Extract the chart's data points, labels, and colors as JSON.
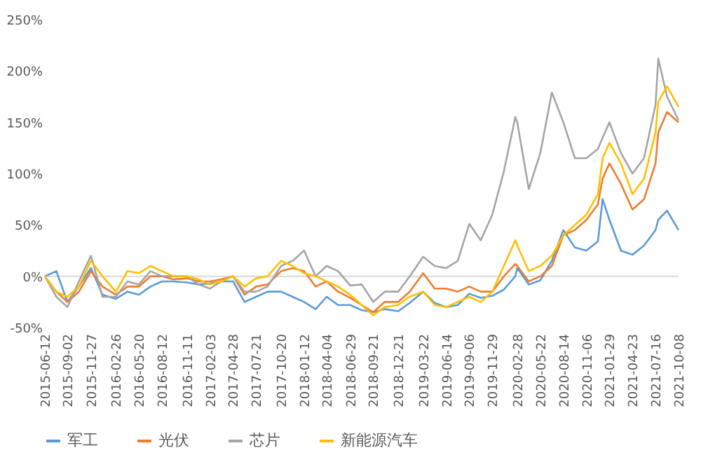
{
  "chart_data": {
    "type": "line",
    "x": [
      "2015-06-12",
      "2015-07-24",
      "2015-09-02",
      "2015-10-14",
      "2015-11-27",
      "2016-01-08",
      "2016-02-26",
      "2016-04-08",
      "2016-05-20",
      "2016-07-01",
      "2016-08-12",
      "2016-09-23",
      "2016-11-11",
      "2016-12-23",
      "2017-02-03",
      "2017-03-17",
      "2017-04-28",
      "2017-06-09",
      "2017-07-21",
      "2017-09-01",
      "2017-10-20",
      "2017-12-01",
      "2018-01-12",
      "2018-02-23",
      "2018-04-04",
      "2018-05-16",
      "2018-06-29",
      "2018-08-10",
      "2018-09-21",
      "2018-11-02",
      "2018-12-21",
      "2019-02-01",
      "2019-03-22",
      "2019-05-03",
      "2019-06-14",
      "2019-07-26",
      "2019-09-06",
      "2019-10-18",
      "2019-11-29",
      "2020-01-10",
      "2020-02-21",
      "2020-02-28",
      "2020-04-10",
      "2020-05-22",
      "2020-07-03",
      "2020-08-14",
      "2020-09-25",
      "2020-11-06",
      "2020-12-18",
      "2021-01-04",
      "2021-01-29",
      "2021-03-12",
      "2021-04-23",
      "2021-06-04",
      "2021-07-16",
      "2021-07-26",
      "2021-08-27",
      "2021-10-08"
    ],
    "series": [
      {
        "name": "军工",
        "color": "#5b9bd5",
        "values": [
          0,
          5,
          -25,
          -10,
          8,
          -18,
          -22,
          -15,
          -18,
          -10,
          -5,
          -5,
          -6,
          -8,
          -7,
          -5,
          -5,
          -25,
          -20,
          -15,
          -15,
          -20,
          -25,
          -32,
          -20,
          -28,
          -28,
          -33,
          -35,
          -32,
          -34,
          -26,
          -15,
          -26,
          -30,
          -28,
          -17,
          -21,
          -19,
          -13,
          0,
          8,
          -8,
          -4,
          15,
          45,
          28,
          25,
          34,
          75,
          55,
          25,
          21,
          30,
          45,
          55,
          64,
          45
        ]
      },
      {
        "name": "光伏",
        "color": "#ed7d31",
        "values": [
          0,
          -15,
          -25,
          -15,
          5,
          -10,
          -18,
          -10,
          -10,
          0,
          0,
          -3,
          -2,
          -5,
          -5,
          -3,
          0,
          -18,
          -10,
          -8,
          5,
          8,
          5,
          -10,
          -5,
          -15,
          -21,
          -28,
          -35,
          -25,
          -25,
          -15,
          3,
          -12,
          -12,
          -15,
          -10,
          -15,
          -15,
          0,
          12,
          10,
          -5,
          0,
          10,
          40,
          45,
          55,
          70,
          95,
          110,
          90,
          65,
          75,
          110,
          140,
          160,
          150
        ]
      },
      {
        "name": "芯片",
        "color": "#a5a5a5",
        "values": [
          0,
          -20,
          -30,
          -5,
          20,
          -20,
          -20,
          -5,
          -8,
          5,
          0,
          0,
          0,
          -8,
          -12,
          -5,
          0,
          -15,
          -15,
          -10,
          10,
          15,
          25,
          0,
          10,
          5,
          -9,
          -8,
          -25,
          -15,
          -15,
          0,
          19,
          10,
          8,
          15,
          51,
          35,
          60,
          102,
          155,
          150,
          85,
          120,
          179,
          150,
          115,
          115,
          124,
          135,
          150,
          120,
          100,
          115,
          167,
          212,
          175,
          152
        ]
      },
      {
        "name": "新能源汽车",
        "color": "#ffc000",
        "values": [
          0,
          -15,
          -20,
          -10,
          15,
          0,
          -15,
          5,
          3,
          10,
          5,
          0,
          0,
          -3,
          -8,
          -5,
          0,
          -10,
          -2,
          0,
          15,
          10,
          3,
          0,
          -5,
          -10,
          -18,
          -28,
          -38,
          -30,
          -28,
          -20,
          -15,
          -28,
          -30,
          -25,
          -20,
          -25,
          -15,
          10,
          35,
          30,
          5,
          10,
          20,
          40,
          50,
          60,
          80,
          115,
          130,
          110,
          80,
          95,
          140,
          170,
          185,
          165
        ]
      }
    ],
    "xlim": [
      "2015-06-12",
      "2021-10-08"
    ],
    "xticks": [
      "2015-06-12",
      "2015-09-02",
      "2015-11-27",
      "2016-02-26",
      "2016-05-20",
      "2016-08-12",
      "2016-11-11",
      "2017-02-03",
      "2017-04-28",
      "2017-07-21",
      "2017-10-20",
      "2018-01-12",
      "2018-04-04",
      "2018-06-29",
      "2018-09-21",
      "2018-12-21",
      "2019-03-22",
      "2019-06-14",
      "2019-09-06",
      "2019-11-29",
      "2020-02-28",
      "2020-05-22",
      "2020-08-14",
      "2020-11-06",
      "2021-01-29",
      "2021-04-23",
      "2021-07-16",
      "2021-10-08"
    ],
    "ylim": [
      -50,
      250
    ],
    "yticks": [
      {
        "value": -50,
        "label": "-50%"
      },
      {
        "value": 0,
        "label": "0%"
      },
      {
        "value": 50,
        "label": "50%"
      },
      {
        "value": 100,
        "label": "100%"
      },
      {
        "value": 150,
        "label": "150%"
      },
      {
        "value": 200,
        "label": "200%"
      },
      {
        "value": 250,
        "label": "250%"
      }
    ],
    "ref_lines": [
      {
        "axis": "y",
        "value": 0,
        "color": "#d9d9d9"
      }
    ],
    "grid": false,
    "legend": "bottom",
    "line_style": "solid",
    "marker": "none"
  }
}
